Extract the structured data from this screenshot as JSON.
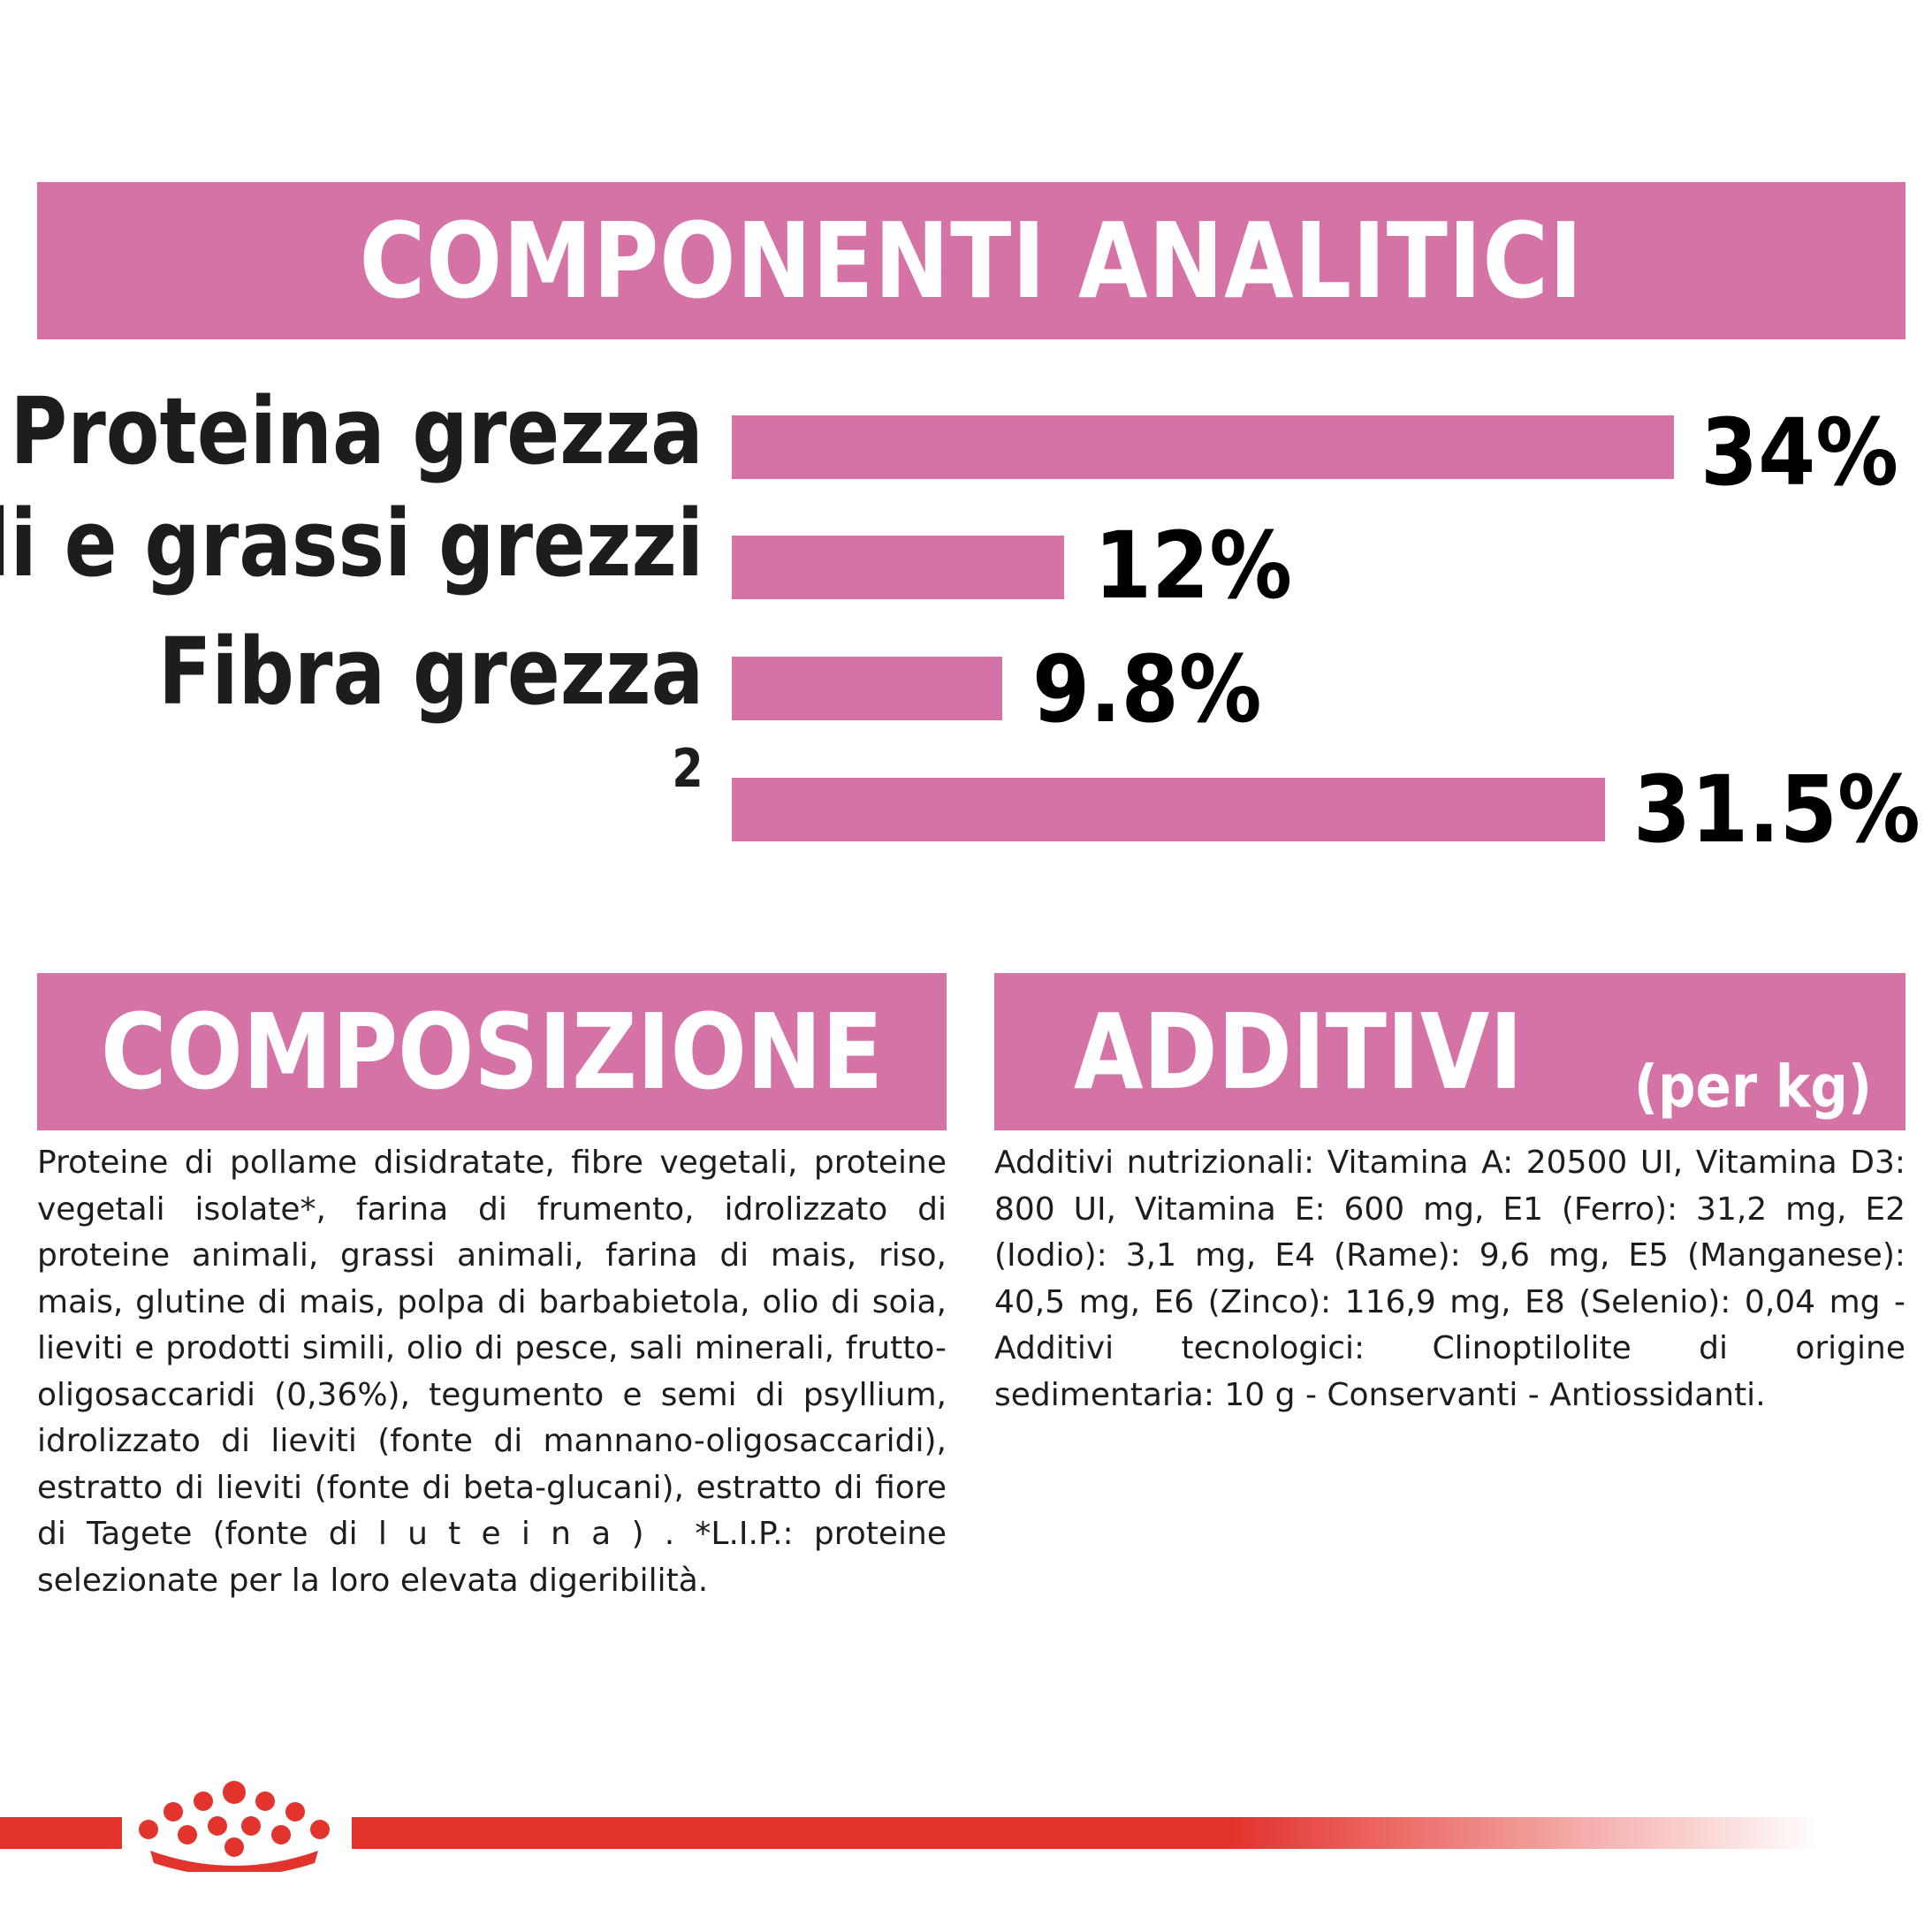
{
  "analytical": {
    "title": "COMPONENTI ANALITICI",
    "rows": [
      {
        "label": "Proteina grezza",
        "value": "34%"
      },
      {
        "label": "Oli e grassi grezzi",
        "value": "12%"
      },
      {
        "label": "Fibra grezza",
        "value": "9.8%"
      },
      {
        "label": "2",
        "value": "31.5%"
      }
    ]
  },
  "composition": {
    "title": "COMPOSIZIONE",
    "text": "Proteine di pollame disidratate, fibre vegetali, proteine vegetali isolate*, farina di frumento, idrolizzato di proteine animali, grassi animali, farina di mais, riso, mais, glutine di mais, polpa di barbabietola, olio di soia, lieviti e prodotti simili, olio di pesce, sali minerali, frutto-oligosaccaridi (0,36%), tegumento e semi di psyllium, idrolizzato di lieviti (fonte di mannano-oligosaccaridi), estratto di lieviti (fonte di beta-glucani), estratto di fiore di Tagete (fonte di l u t e i n a ) . *L.I.P.: proteine selezionate per la loro elevata digeribilità."
  },
  "additives": {
    "title": "ADDITIVI",
    "unit": "(per kg)",
    "text": "Additivi nutrizionali: Vitamina A: 20500 UI, Vitamina D3: 800 UI, Vitamina E: 600 mg, E1 (Ferro): 31,2 mg, E2 (Iodio): 3,1 mg, E4 (Rame): 9,6 mg, E5 (Manganese): 40,5 mg, E6 (Zinco): 116,9 mg, E8 (Selenio): 0,04 mg - Additivi tecnologici: Clinoptilolite di origine sedimentaria: 10 g - Conservanti - Antiossidanti."
  },
  "colors": {
    "accent": "#d673a6",
    "brand_red": "#e3332d",
    "text": "#1d1d1b"
  },
  "icons": {
    "logo": "crown-icon"
  }
}
